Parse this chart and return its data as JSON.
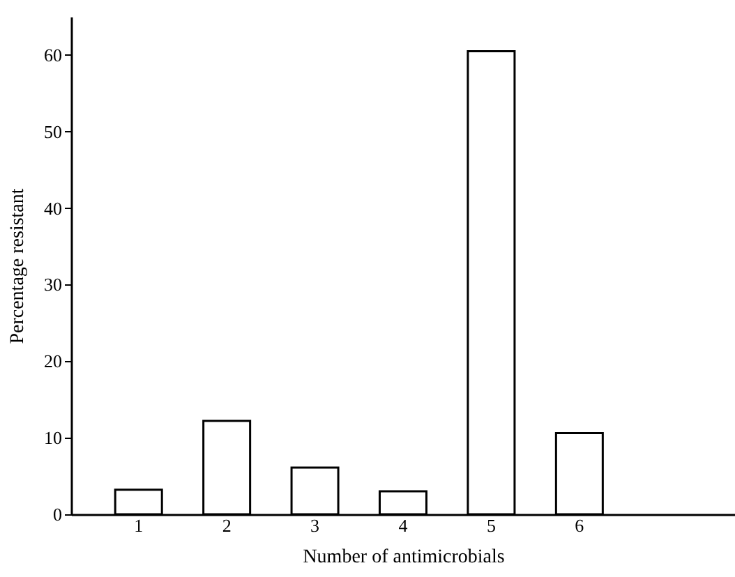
{
  "chart_data": {
    "type": "bar",
    "xlabel": "Number of antimicrobials",
    "ylabel": "Percentage resistant",
    "categories": [
      "1",
      "2",
      "3",
      "4",
      "5",
      "6"
    ],
    "values": [
      3.2,
      12.2,
      6.1,
      3.0,
      60.5,
      10.6
    ],
    "color": "#ffffff",
    "ylim": [
      0,
      65
    ],
    "yticks": [
      0,
      10,
      20,
      30,
      40,
      50,
      60
    ],
    "grid": false
  }
}
